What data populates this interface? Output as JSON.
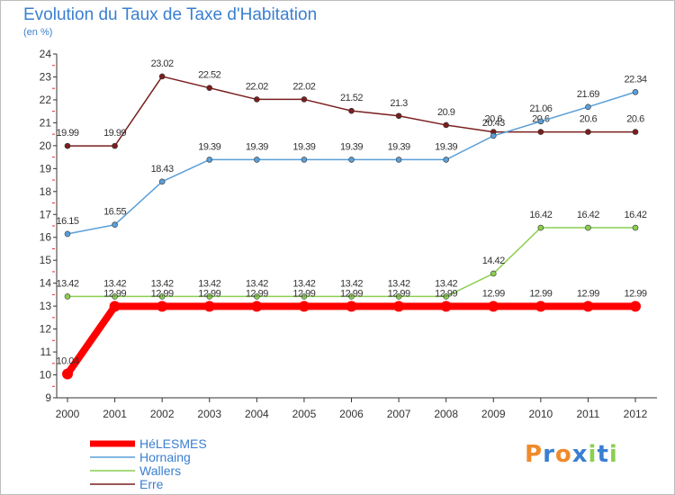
{
  "chart_data": {
    "type": "line",
    "title": "Evolution du Taux de Taxe d'Habitation",
    "subtitle": "(en %)",
    "x": [
      "2000",
      "2001",
      "2002",
      "2003",
      "2004",
      "2005",
      "2006",
      "2007",
      "2008",
      "2009",
      "2010",
      "2011",
      "2012"
    ],
    "ylim": [
      9,
      24
    ],
    "yticks": [
      9,
      10,
      11,
      12,
      13,
      14,
      15,
      16,
      17,
      18,
      19,
      20,
      21,
      22,
      23,
      24
    ],
    "grid": false,
    "legend_position": "bottom-left",
    "series": [
      {
        "name": "HéLESMES",
        "color": "#ff0000",
        "values": [
          10.04,
          12.99,
          12.99,
          12.99,
          12.99,
          12.99,
          12.99,
          12.99,
          12.99,
          12.99,
          12.99,
          12.99,
          12.99
        ],
        "labels": [
          "10.04",
          "12.99",
          "12.99",
          "12.99",
          "12.99",
          "12.99",
          "12.99",
          "12.99",
          "12.99",
          "12.99",
          "12.99",
          "12.99",
          "12.99"
        ]
      },
      {
        "name": "Hornaing",
        "color": "#5a9fd8",
        "values": [
          16.15,
          16.55,
          18.43,
          19.39,
          19.39,
          19.39,
          19.39,
          19.39,
          19.39,
          20.43,
          21.06,
          21.69,
          22.34
        ],
        "labels": [
          "16.15",
          "16.55",
          "18.43",
          "19.39",
          "19.39",
          "19.39",
          "19.39",
          "19.39",
          "19.39",
          "20.43",
          "21.06",
          "21.69",
          "22.34"
        ]
      },
      {
        "name": "Wallers",
        "color": "#8ccf50",
        "values": [
          13.42,
          13.42,
          13.42,
          13.42,
          13.42,
          13.42,
          13.42,
          13.42,
          13.42,
          14.42,
          16.42,
          16.42,
          16.42
        ],
        "labels": [
          "13.42",
          "13.42",
          "13.42",
          "13.42",
          "13.42",
          "13.42",
          "13.42",
          "13.42",
          "13.42",
          "14.42",
          "16.42",
          "16.42",
          "16.42"
        ]
      },
      {
        "name": "Erre",
        "color": "#7a1e1e",
        "values": [
          19.99,
          19.99,
          23.02,
          22.52,
          22.02,
          22.02,
          21.52,
          21.3,
          20.9,
          20.6,
          20.6,
          20.6,
          20.6
        ],
        "labels": [
          "19.99",
          "19.99",
          "23.02",
          "22.52",
          "22.02",
          "22.02",
          "21.52",
          "21.3",
          "20.9",
          "20.6",
          "20.6",
          "20.6",
          "20.6"
        ]
      }
    ]
  },
  "logo": {
    "text": "Proxiti",
    "letter_colors": [
      "#f08a2c",
      "#3a7fd0",
      "#f08a2c",
      "#3a7fd0",
      "#8ccf50",
      "#3a7fd0",
      "#8ccf50"
    ]
  }
}
